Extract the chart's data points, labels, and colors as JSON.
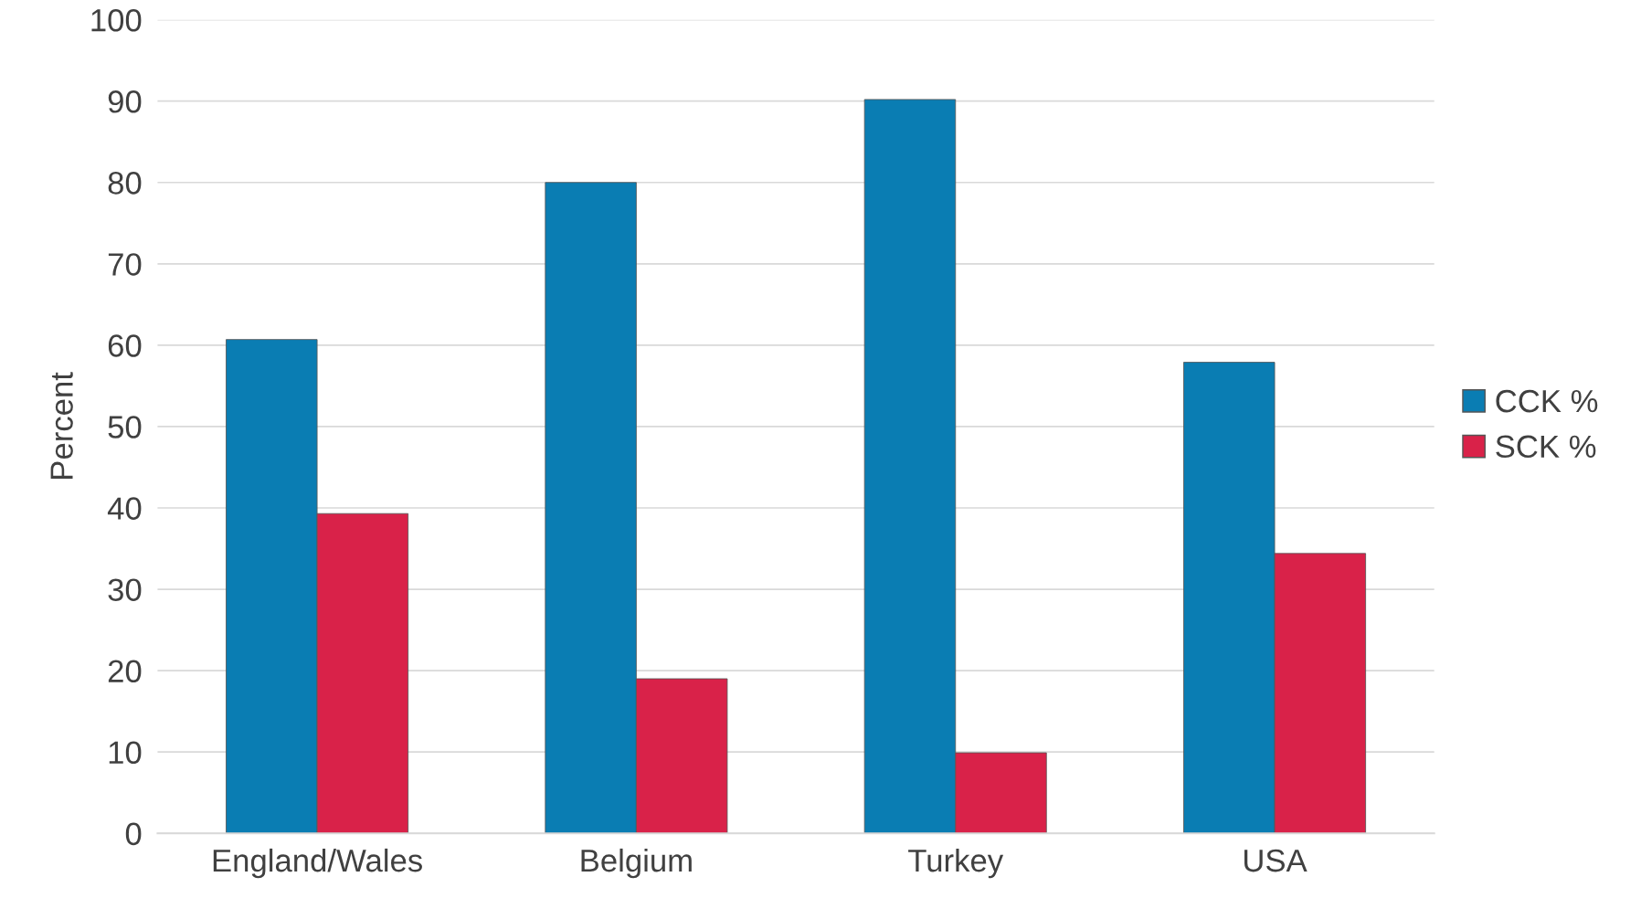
{
  "chart_data": {
    "type": "bar",
    "ylabel": "Percent",
    "categories": [
      "England/Wales",
      "Belgium",
      "Turkey",
      "USA"
    ],
    "series": [
      {
        "name": "CCK %",
        "color": "#0a7db3",
        "values": [
          60.7,
          80,
          90.2,
          57.9
        ]
      },
      {
        "name": "SCK %",
        "color": "#d92249",
        "values": [
          39.3,
          19,
          9.9,
          34.4
        ]
      }
    ],
    "ylim": [
      0,
      100
    ],
    "yticks": [
      0,
      10,
      20,
      30,
      40,
      50,
      60,
      70,
      80,
      90,
      100
    ],
    "grid": "y",
    "legend": "right"
  }
}
